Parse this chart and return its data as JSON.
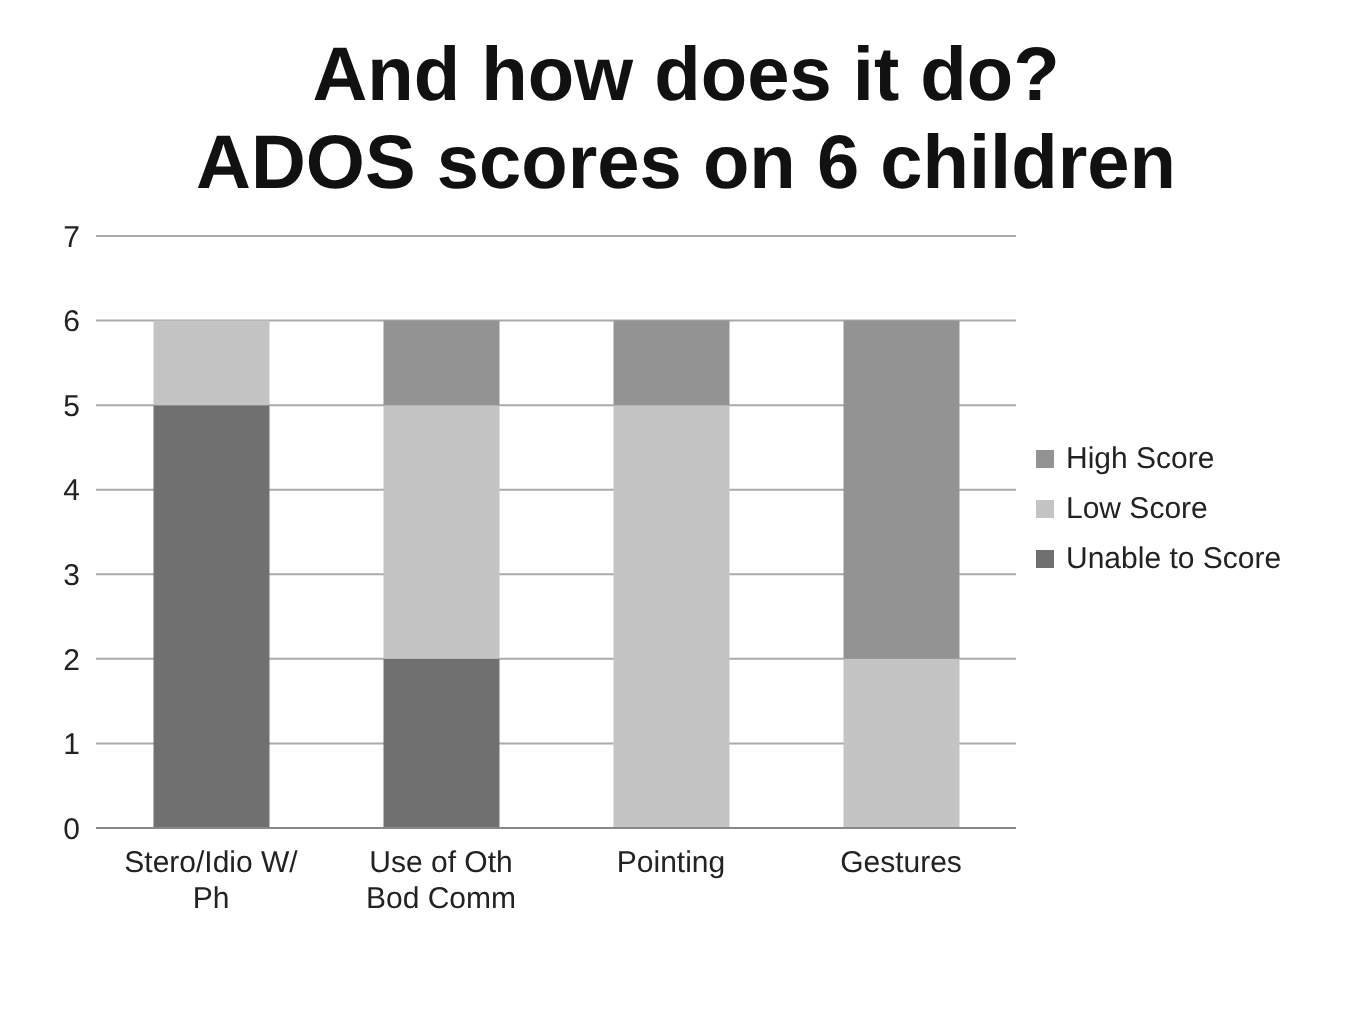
{
  "chart_data": {
    "type": "bar",
    "title": "And how does it do?",
    "subtitle": "ADOS scores on 6 children",
    "categories": [
      "Stero/Idio W/ Ph",
      "Use of Oth Bod Comm",
      "Pointing",
      "Gestures"
    ],
    "series": [
      {
        "name": "Unable to Score",
        "color": "#707070",
        "values": [
          5,
          2,
          0,
          0
        ]
      },
      {
        "name": "Low Score",
        "color": "#c4c4c4",
        "values": [
          1,
          3,
          5,
          2
        ]
      },
      {
        "name": "High Score",
        "color": "#939393",
        "values": [
          0,
          1,
          1,
          4
        ]
      }
    ],
    "stacked": true,
    "ylim": [
      0,
      7
    ],
    "yticks": [
      0,
      1,
      2,
      3,
      4,
      5,
      6,
      7
    ],
    "grid": "y",
    "legend": "right"
  }
}
